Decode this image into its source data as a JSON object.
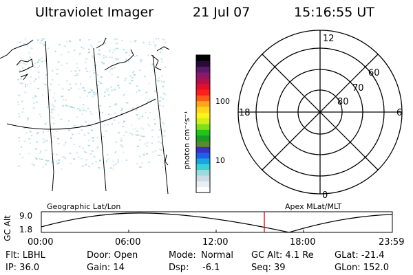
{
  "header": {
    "instrument": "Ultraviolet Imager",
    "date": "21 Jul 07",
    "time": "15:16:55 UT"
  },
  "geo_map": {
    "label": "Geographic Lat/Lon"
  },
  "colorbar": {
    "unit": "photon cm⁻²s⁻¹",
    "ticks": [
      "10",
      "100"
    ],
    "colors": [
      "#ffffff",
      "#e8eef4",
      "#cddbe6",
      "#9fd9de",
      "#3cd2d2",
      "#17a6e0",
      "#1f60e8",
      "#3a2ec4",
      "#5a8a2e",
      "#1c9b22",
      "#21c41e",
      "#7ee01b",
      "#cdf01a",
      "#fff21a",
      "#ffd51a",
      "#ffa51a",
      "#ff5a1a",
      "#ff1e1e",
      "#e0102a",
      "#b3104a",
      "#8b1868",
      "#5a1a6a",
      "#2a0a3a",
      "#000000"
    ]
  },
  "polar_plot": {
    "label": "Apex MLat/MLT",
    "mlt_labels": {
      "top": "12",
      "left": "18",
      "right": "6",
      "bottom": "0"
    },
    "lat_labels": [
      "60",
      "70",
      "80"
    ]
  },
  "altitude_plot": {
    "y_label": "GC Alt",
    "y_ticks": [
      "9.0",
      "1.8"
    ],
    "x_ticks": [
      "00:00",
      "06:00",
      "12:00",
      "18:00",
      "23:59"
    ],
    "marker_color": "#e00000"
  },
  "info": {
    "flt": "Flt: LBHL",
    "ip": "IP: 36.0",
    "door": "Door: Open",
    "gain": "Gain: 14",
    "mode_label": "Mode:",
    "mode_value": "Normal",
    "dsp_label": "Dsp:",
    "dsp_value": "-6.1",
    "gc_alt": "GC Alt: 4.1 Re",
    "seq": "Seq: 39",
    "glat": "GLat: -21.4",
    "glon": "GLon: 152.0"
  }
}
